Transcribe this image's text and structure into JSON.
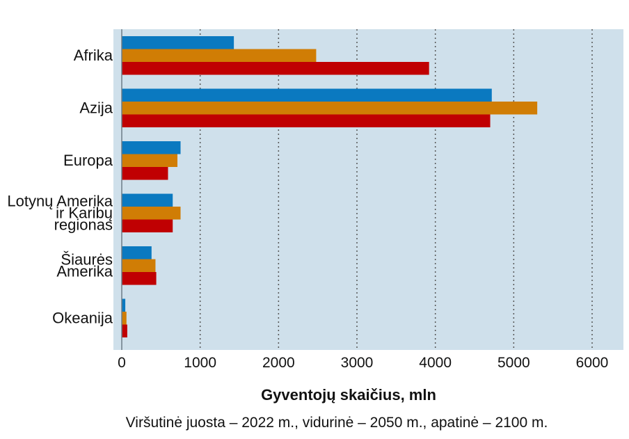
{
  "chart_data": {
    "type": "bar",
    "orientation": "horizontal",
    "categories": [
      [
        "Afrika"
      ],
      [
        "Azija"
      ],
      [
        "Europa"
      ],
      [
        "Lotynų Amerika",
        "ir Karibų",
        "regionas"
      ],
      [
        "Šiaurės",
        "Amerika"
      ],
      [
        "Okeanija"
      ]
    ],
    "series": [
      {
        "color": "#0a79c0",
        "values": [
          1430,
          4720,
          750,
          650,
          380,
          45
        ]
      },
      {
        "color": "#d07d05",
        "values": [
          2480,
          5300,
          710,
          750,
          430,
          60
        ]
      },
      {
        "color": "#c00002",
        "values": [
          3920,
          4700,
          590,
          650,
          440,
          70
        ]
      }
    ],
    "xlabel": "Gyventojų skaičius, mln",
    "xlim": [
      0,
      6500
    ],
    "xticks": [
      0,
      1000,
      2000,
      3000,
      4000,
      5000,
      6000
    ],
    "grid": "vertical dotted",
    "background": "#cfe0eb",
    "caption": "Viršutinė juosta – 2022 m., vidurinė – 2050 m., apatinė – 2100 m."
  }
}
